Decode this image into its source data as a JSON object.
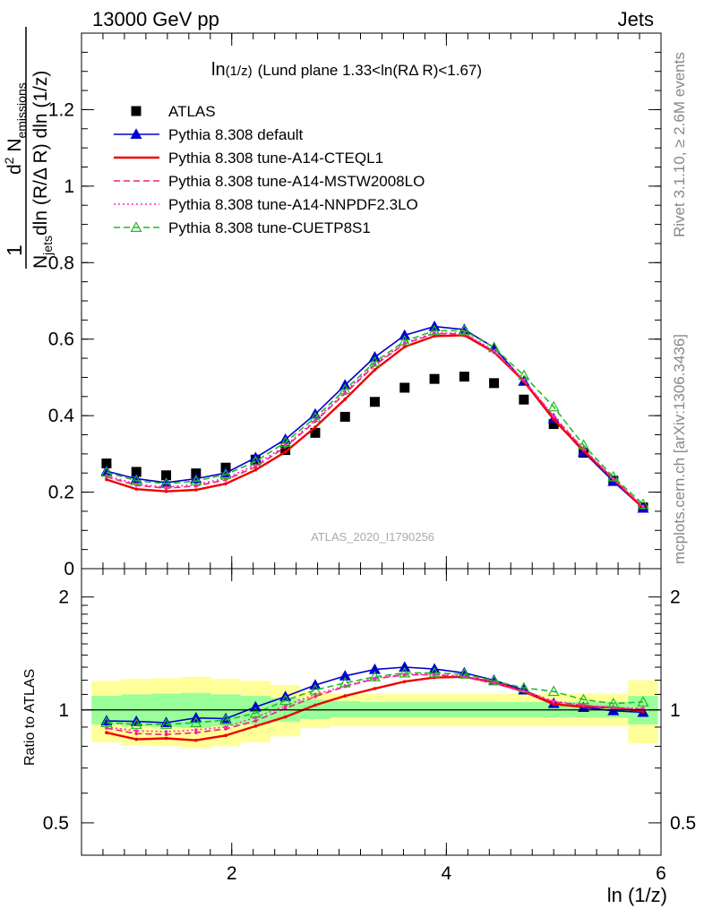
{
  "header": {
    "left": "13000 GeV pp",
    "right": "Jets"
  },
  "side_labels": {
    "rivet": "Rivet 3.1.10, ≥ 2.6M events",
    "mcplots": "mcplots.cern.ch [arXiv:1306.3436]"
  },
  "watermark": "ATLAS_2020_I1790256",
  "chart_data": [
    {
      "type": "scatter",
      "title": "ln(1/z) (Lund plane 1.33<ln(RΔ R)<1.67)",
      "title_main": "ln",
      "title_sub": "(1/z)",
      "title_rest": "(Lund plane 1.33<ln(RΔ R)<1.67)",
      "xlabel": "ln (1/z)",
      "ylabel": "1/N_jets dln(R/ΔR) dln(1/z) · d²N_emissions",
      "ylabel_parts": {
        "one": "1",
        "d2": "d",
        "d2_sup": "2",
        "N": " N",
        "N_sub": "emissions",
        "den_N": "N",
        "den_sub": "jets",
        "den_rest": "dln (R/Δ R) dln (1/z)"
      },
      "xlim": [
        0.6,
        6.0
      ],
      "ylim": [
        0,
        1.4
      ],
      "yticks": [
        0,
        0.2,
        0.4,
        0.6,
        0.8,
        1,
        1.2
      ],
      "ytick_labels": [
        "0",
        "0.2",
        "0.4",
        "0.6",
        "0.8",
        "1",
        "1.2"
      ],
      "x": [
        0.833,
        1.111,
        1.389,
        1.667,
        1.944,
        2.222,
        2.5,
        2.778,
        3.056,
        3.333,
        3.611,
        3.889,
        4.167,
        4.444,
        4.722,
        5.0,
        5.278,
        5.556,
        5.833
      ],
      "legend_position": "top-left",
      "series": [
        {
          "name": "ATLAS",
          "color": "#000000",
          "style": "data",
          "values": [
            0.275,
            0.253,
            0.244,
            0.249,
            0.264,
            0.285,
            0.31,
            0.355,
            0.397,
            0.436,
            0.473,
            0.496,
            0.502,
            0.485,
            0.442,
            0.378,
            0.303,
            0.23,
            0.16
          ]
        },
        {
          "name": "Pythia 8.308 default",
          "color": "#0000cc",
          "style": "solid-triangle",
          "values": [
            0.255,
            0.235,
            0.225,
            0.235,
            0.25,
            0.29,
            0.338,
            0.404,
            0.48,
            0.553,
            0.61,
            0.633,
            0.625,
            0.578,
            0.49,
            0.392,
            0.305,
            0.228,
            0.158
          ]
        },
        {
          "name": "Pythia 8.308 tune-A14-CTEQL1",
          "color": "#ee0000",
          "style": "solid",
          "values": [
            0.233,
            0.208,
            0.202,
            0.206,
            0.222,
            0.258,
            0.305,
            0.37,
            0.443,
            0.52,
            0.58,
            0.608,
            0.61,
            0.566,
            0.49,
            0.39,
            0.308,
            0.234,
            0.158
          ]
        },
        {
          "name": "Pythia 8.308 tune-A14-MSTW2008LO",
          "color": "#ee2277",
          "style": "dashed",
          "values": [
            0.24,
            0.218,
            0.21,
            0.216,
            0.232,
            0.266,
            0.318,
            0.385,
            0.458,
            0.532,
            0.588,
            0.614,
            0.614,
            0.568,
            0.492,
            0.398,
            0.312,
            0.233,
            0.162
          ]
        },
        {
          "name": "Pythia 8.308 tune-A14-NNPDF2.3LO",
          "color": "#ff22cc",
          "style": "dotted",
          "values": [
            0.243,
            0.221,
            0.213,
            0.22,
            0.236,
            0.271,
            0.322,
            0.388,
            0.462,
            0.535,
            0.59,
            0.616,
            0.616,
            0.57,
            0.494,
            0.399,
            0.314,
            0.235,
            0.163
          ]
        },
        {
          "name": "Pythia 8.308 tune-CUETP8S1",
          "color": "#22bb22",
          "style": "dashed-open-triangle",
          "values": [
            0.252,
            0.23,
            0.222,
            0.229,
            0.246,
            0.28,
            0.33,
            0.395,
            0.468,
            0.54,
            0.595,
            0.622,
            0.622,
            0.578,
            0.505,
            0.423,
            0.323,
            0.24,
            0.168
          ]
        }
      ]
    },
    {
      "type": "line",
      "title": "",
      "xlabel": "ln (1/z)",
      "ylabel": "Ratio to ATLAS",
      "xlim": [
        0.6,
        6.0
      ],
      "ylim": [
        0.41,
        2.38
      ],
      "log_y": true,
      "xticks": [
        2,
        4,
        6
      ],
      "xtick_labels": [
        "2",
        "4",
        "6"
      ],
      "yticks": [
        0.5,
        1,
        2
      ],
      "ytick_labels": [
        "0.5",
        "1",
        "2"
      ],
      "x_edges": [
        0.694,
        0.972,
        1.25,
        1.528,
        1.806,
        2.083,
        2.361,
        2.639,
        2.917,
        3.194,
        3.472,
        3.75,
        4.028,
        4.306,
        4.583,
        4.861,
        5.139,
        5.417,
        5.694,
        5.972
      ],
      "band_green": {
        "lo": [
          0.915,
          0.905,
          0.9,
          0.895,
          0.905,
          0.915,
          0.93,
          0.945,
          0.955,
          0.955,
          0.955,
          0.955,
          0.955,
          0.955,
          0.955,
          0.955,
          0.955,
          0.955,
          0.915
        ],
        "hi": [
          1.09,
          1.1,
          1.105,
          1.11,
          1.1,
          1.09,
          1.075,
          1.065,
          1.055,
          1.05,
          1.05,
          1.05,
          1.05,
          1.05,
          1.05,
          1.05,
          1.05,
          1.05,
          1.09
        ]
      },
      "band_yellow": {
        "lo": [
          0.82,
          0.805,
          0.8,
          0.79,
          0.8,
          0.82,
          0.85,
          0.895,
          0.905,
          0.905,
          0.905,
          0.905,
          0.905,
          0.905,
          0.905,
          0.905,
          0.905,
          0.905,
          0.815
        ],
        "hi": [
          1.195,
          1.21,
          1.215,
          1.225,
          1.21,
          1.195,
          1.165,
          1.12,
          1.105,
          1.105,
          1.105,
          1.105,
          1.105,
          1.105,
          1.105,
          1.105,
          1.105,
          1.105,
          1.2
        ]
      },
      "series": [
        {
          "name": "Pythia 8.308 default",
          "color": "#0000cc",
          "style": "solid-triangle",
          "values": [
            0.935,
            0.932,
            0.925,
            0.952,
            0.948,
            1.018,
            1.085,
            1.165,
            1.232,
            1.282,
            1.3,
            1.285,
            1.255,
            1.2,
            1.13,
            1.04,
            1.015,
            0.995,
            0.985
          ]
        },
        {
          "name": "Pythia 8.308 tune-A14-CTEQL1",
          "color": "#ee0000",
          "style": "solid",
          "values": [
            0.87,
            0.835,
            0.84,
            0.83,
            0.855,
            0.905,
            0.958,
            1.03,
            1.09,
            1.14,
            1.19,
            1.22,
            1.225,
            1.185,
            1.12,
            1.035,
            1.02,
            1.015,
            0.99
          ]
        },
        {
          "name": "Pythia 8.308 tune-A14-MSTW2008LO",
          "color": "#ee2277",
          "style": "dashed",
          "values": [
            0.895,
            0.865,
            0.86,
            0.87,
            0.89,
            0.935,
            1.01,
            1.085,
            1.155,
            1.21,
            1.24,
            1.24,
            1.225,
            1.175,
            1.12,
            1.05,
            1.03,
            1.01,
            1.005
          ]
        },
        {
          "name": "Pythia 8.308 tune-A14-NNPDF2.3LO",
          "color": "#ff22cc",
          "style": "dotted",
          "values": [
            0.9,
            0.88,
            0.875,
            0.885,
            0.9,
            0.955,
            1.025,
            1.1,
            1.16,
            1.215,
            1.245,
            1.245,
            1.23,
            1.18,
            1.125,
            1.055,
            1.03,
            1.015,
            1.01
          ]
        },
        {
          "name": "Pythia 8.308 tune-CUETP8S1",
          "color": "#22bb22",
          "style": "dashed-open-triangle",
          "values": [
            0.925,
            0.915,
            0.915,
            0.925,
            0.94,
            0.98,
            1.06,
            1.13,
            1.18,
            1.225,
            1.255,
            1.255,
            1.245,
            1.195,
            1.145,
            1.12,
            1.065,
            1.04,
            1.05
          ]
        }
      ]
    }
  ]
}
